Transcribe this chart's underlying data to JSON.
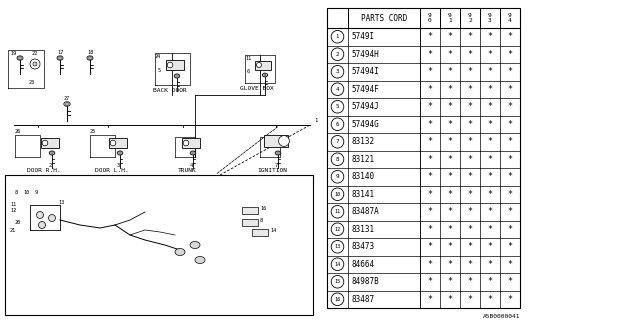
{
  "bg_color": "#ffffff",
  "parts": [
    {
      "num": "1",
      "code": "5749I"
    },
    {
      "num": "2",
      "code": "57494H"
    },
    {
      "num": "3",
      "code": "57494I"
    },
    {
      "num": "4",
      "code": "57494F"
    },
    {
      "num": "5",
      "code": "57494J"
    },
    {
      "num": "6",
      "code": "57494G"
    },
    {
      "num": "7",
      "code": "83132"
    },
    {
      "num": "8",
      "code": "83121"
    },
    {
      "num": "9",
      "code": "83140"
    },
    {
      "num": "10",
      "code": "83141"
    },
    {
      "num": "11",
      "code": "83487A"
    },
    {
      "num": "12",
      "code": "83131"
    },
    {
      "num": "13",
      "code": "83473"
    },
    {
      "num": "14",
      "code": "84664"
    },
    {
      "num": "15",
      "code": "84987B"
    },
    {
      "num": "16",
      "code": "83487"
    }
  ],
  "year_cols": [
    "9\n0",
    "9\n1",
    "9\n2",
    "9\n3",
    "9\n4"
  ],
  "footer_text": "A5B0000041"
}
